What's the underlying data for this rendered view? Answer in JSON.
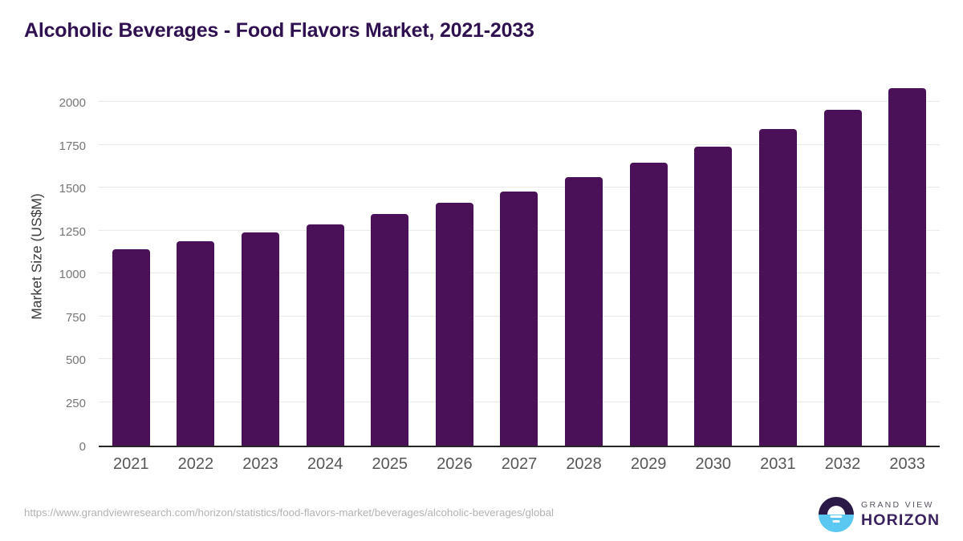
{
  "page": {
    "title": "Alcoholic Beverages - Food Flavors Market, 2021-2033",
    "source_url": "https://www.grandviewresearch.com/horizon/statistics/food-flavors-market/beverages/alcoholic-beverages/global"
  },
  "brand": {
    "icon": "grand-view-horizon-sunrise-logo",
    "name_top": "GRAND VIEW",
    "name_bottom": "HORIZON",
    "colors": {
      "icon_top": "#2b1947",
      "icon_bottom": "#5ac8f0",
      "name_top": "#575060",
      "name_bottom": "#3a2260"
    }
  },
  "chart_data": {
    "type": "bar",
    "title": "Alcoholic Beverages - Food Flavors Market, 2021-2033",
    "categories": [
      "2021",
      "2022",
      "2023",
      "2024",
      "2025",
      "2026",
      "2027",
      "2028",
      "2029",
      "2030",
      "2031",
      "2032",
      "2033"
    ],
    "values": [
      1140,
      1188,
      1238,
      1286,
      1346,
      1413,
      1478,
      1561,
      1646,
      1740,
      1841,
      1953,
      2082
    ],
    "xlabel": "",
    "ylabel": "Market Size (US$M)",
    "ylim": [
      0,
      2137
    ],
    "yticks": [
      0,
      250,
      500,
      750,
      1000,
      1250,
      1500,
      1750,
      2000
    ],
    "grid": "horizontal",
    "legend": "none",
    "bar_color": "#4a1158",
    "gridline_color": "#e9e9e9",
    "axis_line_color": "#262626",
    "title_color": "#2f1050"
  }
}
